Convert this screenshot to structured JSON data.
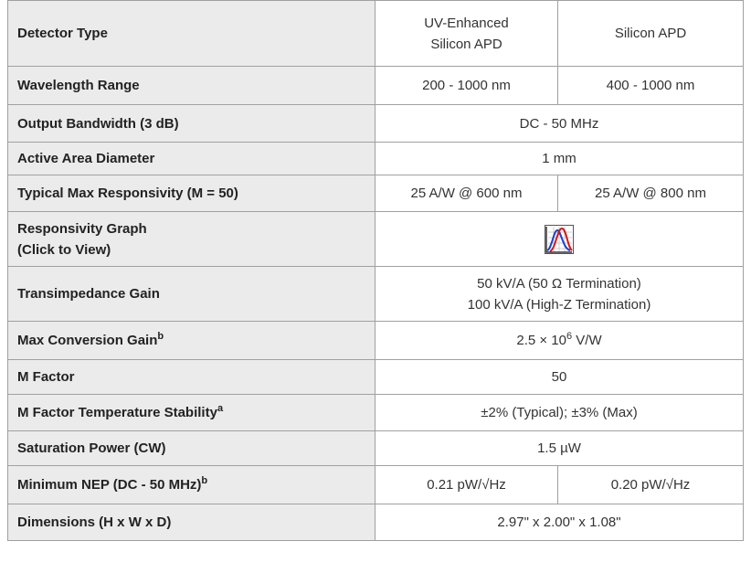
{
  "table": {
    "rows": [
      {
        "label": "Detector Type",
        "values": [
          [
            "UV-Enhanced",
            "Silicon APD"
          ],
          "Silicon APD"
        ]
      },
      {
        "label": "Wavelength Range",
        "values": [
          "200 - 1000 nm",
          "400 - 1000 nm"
        ]
      },
      {
        "label": "Output Bandwidth (3 dB)",
        "values": [
          "DC - 50 MHz"
        ]
      },
      {
        "label": "Active Area Diameter",
        "values": [
          "1 mm"
        ]
      },
      {
        "label": "Typical Max Responsivity (M = 50)",
        "values": [
          "25 A/W @ 600 nm",
          "25 A/W @ 800 nm"
        ]
      },
      {
        "label": [
          "Responsivity Graph",
          "(Click to View)"
        ],
        "values": []
      },
      {
        "label": "Transimpedance Gain",
        "values": [
          [
            "50 kV/A (50 Ω Termination)",
            "100 kV/A (High-Z Termination)"
          ]
        ]
      },
      {
        "label": {
          "text": "Max Conversion Gain",
          "sup": "b"
        },
        "values": [
          {
            "text": "2.5 × 10",
            "sup": "6",
            "after": " V/W"
          }
        ]
      },
      {
        "label": "M Factor",
        "values": [
          "50"
        ]
      },
      {
        "label": {
          "text": "M Factor Temperature Stability",
          "sup": "a"
        },
        "values": [
          "±2% (Typical); ±3% (Max)"
        ]
      },
      {
        "label": "Saturation Power (CW)",
        "values": [
          "1.5 µW"
        ]
      },
      {
        "label": {
          "text": "Minimum NEP (DC - 50 MHz)",
          "sup": "b"
        },
        "values": [
          "0.21 pW/√Hz",
          "0.20 pW/√Hz"
        ]
      },
      {
        "label": "Dimensions (H x W x D)",
        "values": [
          "2.97\" x 2.00\" x 1.08\""
        ]
      }
    ]
  }
}
